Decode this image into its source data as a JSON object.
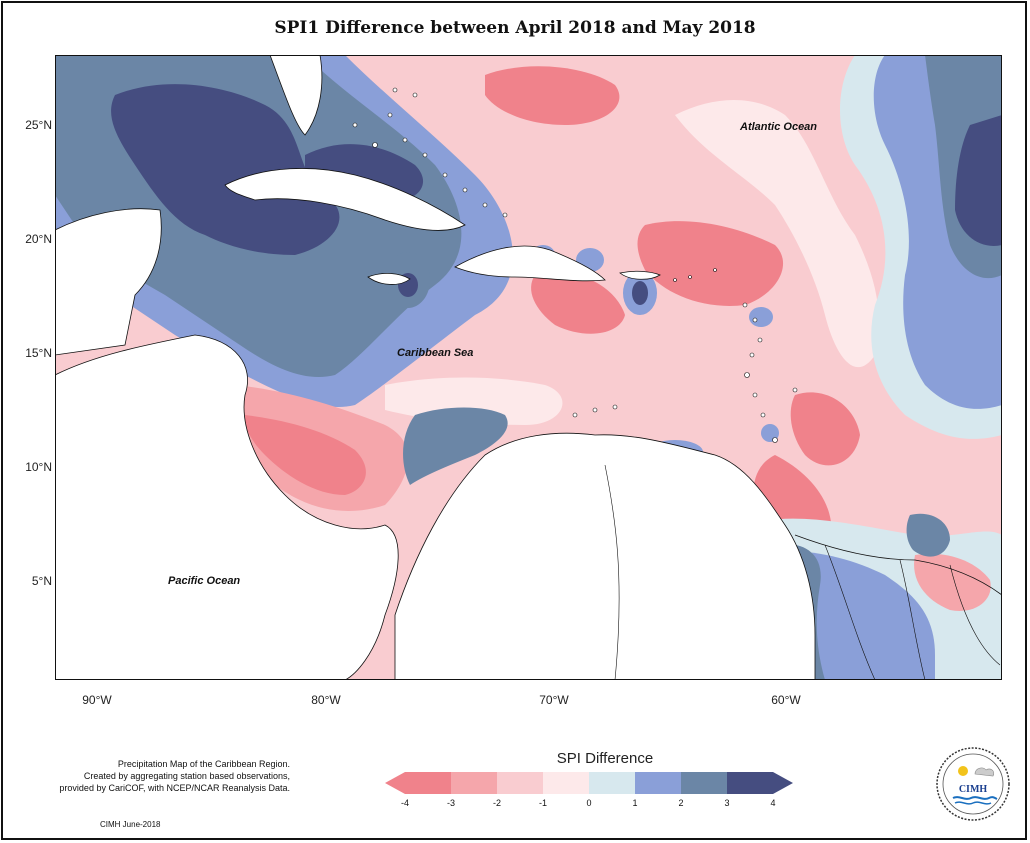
{
  "title": "SPI1 Difference between April 2018 and May 2018",
  "axes": {
    "lat_labels": [
      "25°N",
      "20°N",
      "15°N",
      "10°N",
      "5°N"
    ],
    "lon_labels": [
      "90°W",
      "80°W",
      "70°W",
      "60°W"
    ]
  },
  "labels": {
    "atlantic": "Atlantic Ocean",
    "caribbean": "Caribbean Sea",
    "pacific": "Pacific Ocean"
  },
  "legend": {
    "title": "SPI Difference",
    "ticks": [
      "-4",
      "-3",
      "-2",
      "-1",
      "0",
      "1",
      "2",
      "3",
      "4"
    ],
    "colors": [
      "#f0828b",
      "#f5a6ab",
      "#f9ccd0",
      "#fde9ea",
      "#d7e8ee",
      "#8a9fd8",
      "#6b86a6",
      "#454d80"
    ]
  },
  "credits": {
    "line1": "Precipitation Map of the Caribbean Region.",
    "line2": "Created by aggregating station based observations,",
    "line3": "provided by CariCOF, with NCEP/NCAR Reanalysis Data.",
    "footer": "CIMH June-2018"
  },
  "logo": {
    "name": "CIMH"
  }
}
